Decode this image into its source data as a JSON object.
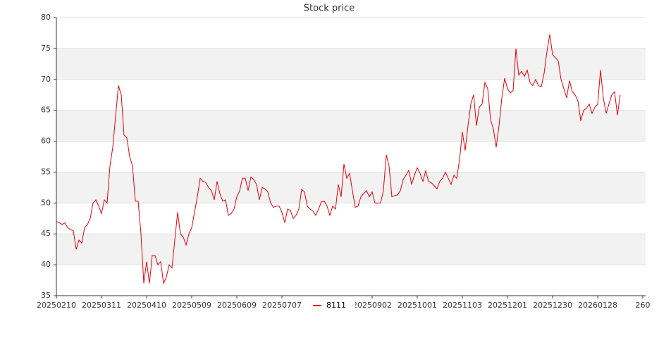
{
  "chart_data": {
    "type": "line",
    "title": "Stock price",
    "series": [
      {
        "name": "8111",
        "color": "#e8000b",
        "values": [
          47,
          46.8,
          46.5,
          46.8,
          46,
          45.7,
          45.5,
          42.5,
          44,
          43.5,
          46,
          46.5,
          47.5,
          50,
          50.5,
          49.5,
          48.3,
          50.5,
          50,
          56,
          59,
          64,
          69,
          67.5,
          61,
          60.5,
          57.5,
          56,
          50.3,
          50.3,
          45,
          37,
          40.5,
          37,
          41.5,
          41.5,
          40,
          40.5,
          37,
          38,
          40,
          39.5,
          44,
          48.5,
          45,
          44.5,
          43.2,
          45,
          46,
          48.5,
          51,
          54,
          53.5,
          53.3,
          52.5,
          52,
          50.5,
          53.5,
          51.5,
          50.3,
          50.5,
          48,
          48.3,
          49,
          51,
          52,
          54,
          54,
          52,
          54.2,
          53.8,
          53,
          50.5,
          52.5,
          52.3,
          51.8,
          50,
          49.3,
          49.5,
          49.5,
          48.5,
          46.8,
          49,
          48.8,
          47.5,
          48,
          49,
          52.2,
          51.8,
          49.5,
          49,
          48.7,
          48,
          49,
          50.2,
          50.3,
          49.5,
          48,
          49.5,
          49,
          53,
          51,
          56.3,
          54,
          54.8,
          52,
          49.3,
          49.5,
          51,
          51.5,
          52,
          51,
          51.8,
          50,
          50,
          50,
          52,
          57.8,
          56,
          51,
          51.2,
          51.3,
          52,
          53.8,
          54.5,
          55.3,
          53,
          54.5,
          55.7,
          54.8,
          53.5,
          55.2,
          53.5,
          53.3,
          52.8,
          52.3,
          53.5,
          54,
          55,
          54,
          53,
          54.5,
          54,
          57,
          61.5,
          58.5,
          62.5,
          66,
          67.5,
          62.5,
          65.5,
          66,
          69.5,
          68.5,
          63.5,
          62,
          59,
          62.5,
          67,
          70.2,
          68.5,
          67.8,
          68.2,
          75,
          70.7,
          71.3,
          70.5,
          71.5,
          69.5,
          69,
          70,
          69,
          68.8,
          71,
          74.5,
          77.3,
          74,
          73.5,
          73,
          70,
          68.5,
          67,
          69.8,
          68,
          67.5,
          66.5,
          63.3,
          65,
          65.3,
          66,
          64.5,
          65.5,
          66,
          71.5,
          67,
          64.5,
          66,
          67.5,
          68,
          64.2,
          67.5
        ]
      }
    ],
    "xlim": [
      0,
      209
    ],
    "xticks": [
      {
        "value": 0,
        "label": "20250210"
      },
      {
        "value": 16,
        "label": "20250311"
      },
      {
        "value": 32,
        "label": "20250410"
      },
      {
        "value": 48,
        "label": "20250509"
      },
      {
        "value": 64,
        "label": "20250609"
      },
      {
        "value": 80,
        "label": "20250707"
      },
      {
        "value": 112,
        "label": "20250902"
      },
      {
        "value": 128,
        "label": "20251001"
      },
      {
        "value": 144,
        "label": "20251103"
      },
      {
        "value": 160,
        "label": "20251201"
      },
      {
        "value": 176,
        "label": "20251230"
      },
      {
        "value": 192,
        "label": "20260128"
      },
      {
        "value": 208,
        "label": "260"
      }
    ],
    "ylim": [
      35,
      80
    ],
    "yticks": [
      35,
      40,
      45,
      50,
      55,
      60,
      65,
      70,
      75,
      80
    ],
    "grid": true,
    "bands": true,
    "legend": "bottom"
  }
}
